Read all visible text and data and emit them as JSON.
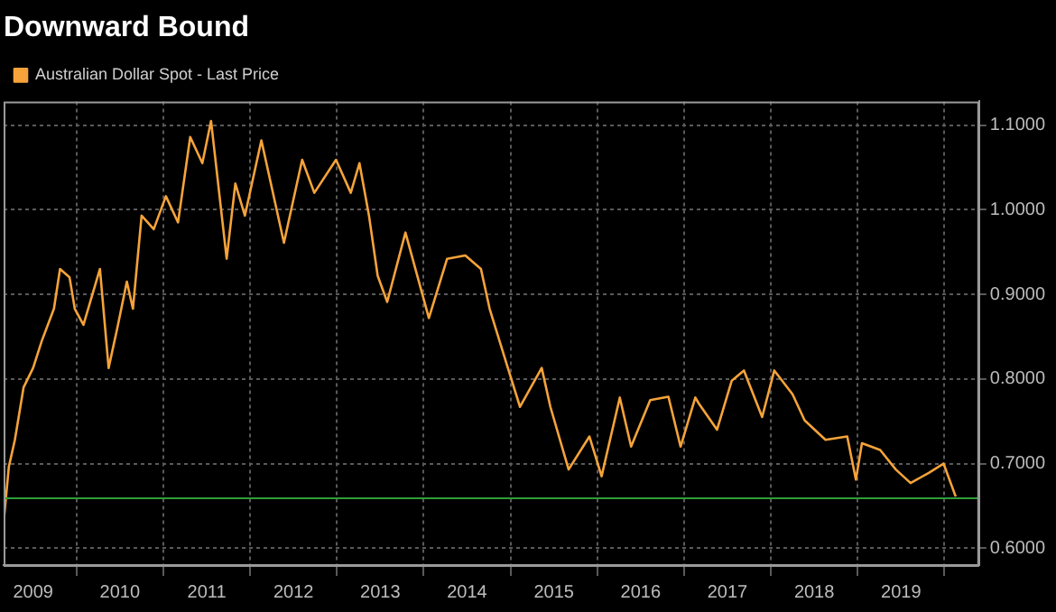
{
  "chart_data": {
    "type": "line",
    "title": "Downward Bound",
    "series": [
      {
        "name": "Australian Dollar Spot - Last Price",
        "color": "#f5a33a",
        "x": [
          2009.16,
          2009.22,
          2009.29,
          2009.39,
          2009.5,
          2009.6,
          2009.74,
          2009.81,
          2009.92,
          2009.98,
          2010.08,
          2010.27,
          2010.37,
          2010.47,
          2010.58,
          2010.65,
          2010.75,
          2010.89,
          2011.03,
          2011.17,
          2011.31,
          2011.45,
          2011.55,
          2011.73,
          2011.83,
          2011.94,
          2012.13,
          2012.39,
          2012.6,
          2012.74,
          2012.99,
          2013.16,
          2013.26,
          2013.37,
          2013.47,
          2013.58,
          2013.79,
          2014.06,
          2014.27,
          2014.48,
          2014.66,
          2014.76,
          2014.97,
          2015.11,
          2015.36,
          2015.46,
          2015.67,
          2015.91,
          2016.05,
          2016.26,
          2016.39,
          2016.61,
          2016.82,
          2016.96,
          2017.13,
          2017.17,
          2017.38,
          2017.55,
          2017.69,
          2017.9,
          2018.04,
          2018.25,
          2018.39,
          2018.63,
          2018.88,
          2018.98,
          2019.05,
          2019.26,
          2019.44,
          2019.61,
          2019.82,
          2019.99,
          2020.13
        ],
        "values": [
          0.63,
          0.696,
          0.728,
          0.79,
          0.813,
          0.845,
          0.883,
          0.93,
          0.92,
          0.883,
          0.864,
          0.93,
          0.813,
          0.86,
          0.915,
          0.883,
          0.993,
          0.977,
          1.016,
          0.985,
          1.086,
          1.055,
          1.105,
          0.942,
          1.031,
          0.993,
          1.082,
          0.961,
          1.059,
          1.02,
          1.059,
          1.02,
          1.055,
          0.993,
          0.922,
          0.891,
          0.973,
          0.872,
          0.942,
          0.946,
          0.93,
          0.883,
          0.813,
          0.767,
          0.813,
          0.767,
          0.693,
          0.732,
          0.685,
          0.778,
          0.72,
          0.775,
          0.779,
          0.72,
          0.778,
          0.771,
          0.74,
          0.798,
          0.81,
          0.755,
          0.81,
          0.782,
          0.751,
          0.728,
          0.732,
          0.681,
          0.724,
          0.716,
          0.693,
          0.677,
          0.689,
          0.7,
          0.661
        ]
      }
    ],
    "xlim": [
      2009.16,
      2020.4
    ],
    "xticks": [
      {
        "value": 2009.5,
        "label": "2009"
      },
      {
        "value": 2010,
        "label": null
      },
      {
        "value": 2010.5,
        "label": "2010"
      },
      {
        "value": 2011,
        "label": null
      },
      {
        "value": 2011.5,
        "label": "2011"
      },
      {
        "value": 2012,
        "label": null
      },
      {
        "value": 2012.5,
        "label": "2012"
      },
      {
        "value": 2013,
        "label": null
      },
      {
        "value": 2013.5,
        "label": "2013"
      },
      {
        "value": 2014,
        "label": null
      },
      {
        "value": 2014.5,
        "label": "2014"
      },
      {
        "value": 2015,
        "label": null
      },
      {
        "value": 2015.5,
        "label": "2015"
      },
      {
        "value": 2016,
        "label": null
      },
      {
        "value": 2016.5,
        "label": "2016"
      },
      {
        "value": 2017,
        "label": null
      },
      {
        "value": 2017.5,
        "label": "2017"
      },
      {
        "value": 2018,
        "label": null
      },
      {
        "value": 2018.5,
        "label": "2018"
      },
      {
        "value": 2019,
        "label": null
      },
      {
        "value": 2019.5,
        "label": "2019"
      },
      {
        "value": 2020,
        "label": null
      }
    ],
    "ylim": [
      0.58,
      1.128
    ],
    "yticks": [
      {
        "value": 0.6,
        "label": "0.6000"
      },
      {
        "value": 0.7,
        "label": "0.7000"
      },
      {
        "value": 0.8,
        "label": "0.8000"
      },
      {
        "value": 0.9,
        "label": "0.9000"
      },
      {
        "value": 1.0,
        "label": "1.0000"
      },
      {
        "value": 1.1,
        "label": "1.1000"
      }
    ],
    "ref_lines": [
      {
        "axis": "y",
        "value": 0.659,
        "color": "#2e9e3a"
      }
    ],
    "grid": true,
    "legend": "top left",
    "marker": "none",
    "line_style": "solid"
  }
}
